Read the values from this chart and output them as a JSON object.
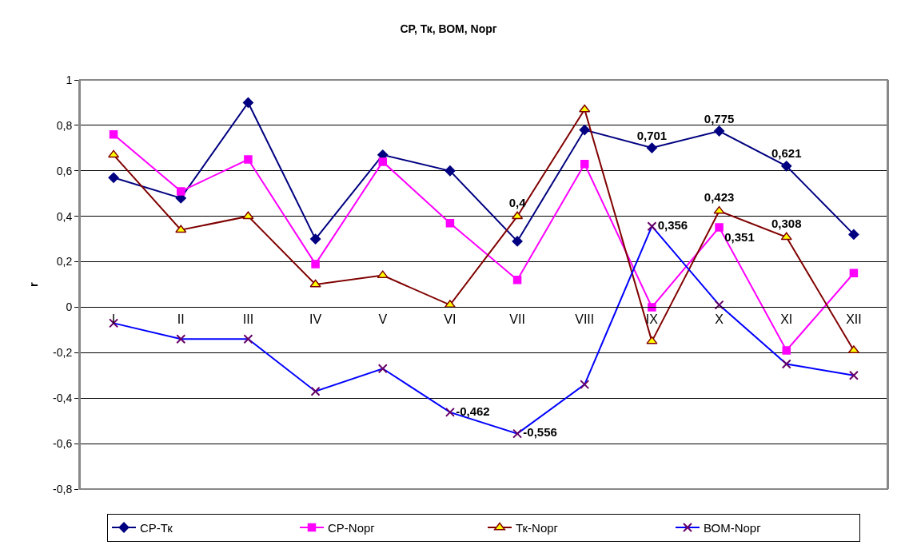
{
  "chart_data": {
    "type": "line",
    "title": "СР, Тк, ВОМ, Nорг",
    "ylabel": "r",
    "categories": [
      "I",
      "II",
      "III",
      "IV",
      "V",
      "VI",
      "VII",
      "VIII",
      "IX",
      "X",
      "XI",
      "XII"
    ],
    "series": [
      {
        "name": "СР-Тк",
        "color": "#000080",
        "marker": "diamond",
        "values": [
          0.57,
          0.48,
          0.9,
          0.3,
          0.67,
          0.6,
          0.29,
          0.78,
          0.701,
          0.775,
          0.621,
          0.32
        ],
        "value_labels": [
          null,
          null,
          null,
          null,
          null,
          null,
          null,
          null,
          "0,701",
          "0,775",
          "0,621",
          null
        ]
      },
      {
        "name": "СР-Nорг",
        "color": "#ff00ff",
        "marker": "square",
        "values": [
          0.76,
          0.51,
          0.65,
          0.19,
          0.64,
          0.37,
          0.12,
          0.63,
          0.0,
          0.351,
          -0.19,
          0.15
        ],
        "value_labels": [
          null,
          null,
          null,
          null,
          null,
          null,
          null,
          null,
          null,
          "0,351",
          null,
          null
        ]
      },
      {
        "name": "Тк-Nорг",
        "color": "#800000",
        "marker": "triangle",
        "values": [
          0.67,
          0.34,
          0.4,
          0.1,
          0.14,
          0.01,
          0.4,
          0.87,
          -0.15,
          0.423,
          0.308,
          -0.19
        ],
        "value_labels": [
          null,
          null,
          null,
          null,
          null,
          null,
          "0,4",
          null,
          null,
          "0,423",
          "0,308",
          null
        ]
      },
      {
        "name": "ВОМ-Nорг",
        "color": "#0000ff",
        "marker": "cross",
        "values": [
          -0.07,
          -0.14,
          -0.14,
          -0.37,
          -0.27,
          -0.462,
          -0.556,
          -0.34,
          0.356,
          0.01,
          -0.25,
          -0.3
        ],
        "value_labels": [
          null,
          null,
          null,
          null,
          null,
          "-0,462",
          "-0,556",
          null,
          "0,356",
          null,
          null,
          null
        ]
      }
    ],
    "ylim": [
      -0.8,
      1
    ],
    "yticks": [
      {
        "value": -0.8,
        "label": "-0,8"
      },
      {
        "value": -0.6,
        "label": "-0,6"
      },
      {
        "value": -0.4,
        "label": "-0,4"
      },
      {
        "value": -0.2,
        "label": "-0,2"
      },
      0,
      {
        "value": 0.2,
        "label": "0,2"
      },
      {
        "value": 0.4,
        "label": "0,4"
      },
      {
        "value": 0.6,
        "label": "0,6"
      },
      {
        "value": 0.8,
        "label": "0,8"
      },
      1
    ],
    "grid": "y",
    "legend": "bottom",
    "line_style": "solid"
  }
}
